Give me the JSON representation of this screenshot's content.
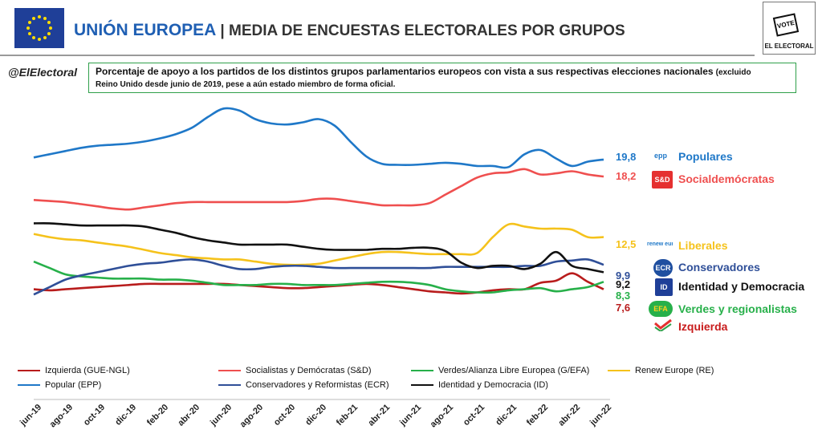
{
  "header": {
    "title_part1": "UNIÓN EUROPEA",
    "title_part2": "| MEDIA DE ENCUESTAS ELECTORALES POR GRUPOS",
    "logo_text": "VOTE",
    "logo_brand": "EL ELECTORAL",
    "handle": "@ElElectoral"
  },
  "subtitle": {
    "main": "Porcentaje de apoyo a los partidos de los distintos grupos parlamentarios europeos con vista a sus respectivas elecciones nacionales",
    "note_inline": "(excluido",
    "note": "Reino Unido desde junio de 2019, pese a aún estado miembro de forma oficial."
  },
  "colors": {
    "epp": "#1f78c8",
    "sd": "#ef4f4f",
    "renew": "#f5c21b",
    "ecr": "#2f4f98",
    "id": "#111111",
    "greens": "#27b04a",
    "left": "#b81c1c"
  },
  "party_labels": [
    {
      "key": "epp",
      "value": "19,8",
      "name": "Populares",
      "icon": "epp-logo-icon",
      "icon_text": "epp"
    },
    {
      "key": "sd",
      "value": "18,2",
      "name": "Socialdemócratas",
      "icon": "sd-logo-icon",
      "icon_text": "S&D"
    },
    {
      "key": "renew",
      "value": "12,5",
      "name": "Liberales",
      "icon": "renew-europe-logo-icon",
      "icon_text": "renew europe."
    },
    {
      "key": "ecr",
      "value": "9,9",
      "name": "Conservadores",
      "icon": "ecr-logo-icon",
      "icon_text": "ECR"
    },
    {
      "key": "id",
      "value": "9,2",
      "name": "Identidad y Democracia",
      "icon": "id-logo-icon",
      "icon_text": "ID"
    },
    {
      "key": "greens",
      "value": "8,3",
      "name": "Verdes y regionalistas",
      "icon": "greens-efa-logo-icon",
      "icon_text": "EFA"
    },
    {
      "key": "left",
      "value": "7,6",
      "name": "Izquierda",
      "icon": "left-logo-icon",
      "icon_text": ""
    }
  ],
  "chart_data": {
    "type": "line",
    "title": "",
    "xlabel": "",
    "ylabel": "",
    "grid": false,
    "legend_position": "bottom",
    "ylim": [
      5,
      25
    ],
    "x_ticks": [
      "jun-19",
      "ago-19",
      "oct-19",
      "dic-19",
      "feb-20",
      "abr-20",
      "jun-20",
      "ago-20",
      "oct-20",
      "dic-20",
      "feb-21",
      "abr-21",
      "jun-21",
      "ago-21",
      "oct-21",
      "dic-21",
      "feb-22",
      "abr-22",
      "jun-22"
    ],
    "x": [
      "jun-19",
      "jul-19",
      "ago-19",
      "sep-19",
      "oct-19",
      "nov-19",
      "dic-19",
      "ene-20",
      "feb-20",
      "mar-20",
      "abr-20",
      "may-20",
      "jun-20",
      "jul-20",
      "ago-20",
      "sep-20",
      "oct-20",
      "nov-20",
      "dic-20",
      "ene-21",
      "feb-21",
      "mar-21",
      "abr-21",
      "may-21",
      "jun-21",
      "jul-21",
      "ago-21",
      "sep-21",
      "oct-21",
      "nov-21",
      "dic-21",
      "ene-22",
      "feb-22",
      "mar-22",
      "abr-22",
      "may-22",
      "jun-22"
    ],
    "series": [
      {
        "key": "left",
        "name": "Izquierda (GUE-NGL)",
        "values": [
          7.6,
          7.5,
          7.6,
          7.7,
          7.8,
          7.9,
          8.0,
          8.1,
          8.1,
          8.1,
          8.1,
          8.1,
          8.1,
          8.0,
          7.9,
          7.8,
          7.7,
          7.7,
          7.8,
          7.9,
          8.0,
          8.1,
          8.0,
          7.8,
          7.6,
          7.4,
          7.3,
          7.2,
          7.3,
          7.5,
          7.6,
          7.6,
          8.2,
          8.4,
          9.1,
          8.3,
          7.6
        ]
      },
      {
        "key": "sd",
        "name": "Socialistas y Demócratas (S&D)",
        "values": [
          16.0,
          15.9,
          15.8,
          15.6,
          15.4,
          15.2,
          15.1,
          15.3,
          15.5,
          15.7,
          15.8,
          15.8,
          15.8,
          15.8,
          15.8,
          15.8,
          15.8,
          15.9,
          16.1,
          16.1,
          15.9,
          15.7,
          15.5,
          15.5,
          15.5,
          15.7,
          16.5,
          17.3,
          18.1,
          18.5,
          18.6,
          18.9,
          18.4,
          18.5,
          18.7,
          18.4,
          18.2
        ]
      },
      {
        "key": "greens",
        "name": "Verdes/Alianza Libre Europea (G/EFA)",
        "values": [
          10.2,
          9.6,
          9.0,
          8.8,
          8.7,
          8.6,
          8.6,
          8.6,
          8.5,
          8.5,
          8.4,
          8.2,
          8.0,
          8.0,
          8.0,
          8.1,
          8.1,
          8.0,
          8.0,
          8.0,
          8.1,
          8.2,
          8.3,
          8.3,
          8.2,
          8.0,
          7.6,
          7.4,
          7.3,
          7.3,
          7.5,
          7.6,
          7.7,
          7.4,
          7.6,
          7.8,
          8.3
        ]
      },
      {
        "key": "renew",
        "name": "Renew Europe (RE)",
        "values": [
          12.8,
          12.5,
          12.3,
          12.2,
          12.0,
          11.8,
          11.6,
          11.3,
          11.0,
          10.8,
          10.6,
          10.5,
          10.4,
          10.4,
          10.2,
          10.0,
          9.9,
          9.9,
          10.0,
          10.3,
          10.6,
          10.9,
          11.1,
          11.1,
          11.0,
          10.9,
          10.9,
          10.9,
          11.0,
          12.5,
          13.7,
          13.5,
          13.3,
          13.3,
          13.2,
          12.5,
          12.5
        ]
      },
      {
        "key": "epp",
        "name": "Popular (EPP)",
        "values": [
          20.0,
          20.3,
          20.6,
          20.9,
          21.1,
          21.2,
          21.3,
          21.5,
          21.8,
          22.2,
          22.8,
          23.8,
          24.6,
          24.4,
          23.6,
          23.2,
          23.1,
          23.3,
          23.6,
          23.0,
          21.5,
          20.1,
          19.4,
          19.3,
          19.3,
          19.4,
          19.5,
          19.4,
          19.2,
          19.2,
          19.1,
          20.3,
          20.7,
          19.9,
          19.2,
          19.6,
          19.8
        ]
      },
      {
        "key": "ecr",
        "name": "Conservadores y Reformistas (ECR)",
        "values": [
          7.1,
          7.8,
          8.5,
          8.9,
          9.2,
          9.5,
          9.8,
          10.0,
          10.1,
          10.3,
          10.4,
          10.2,
          9.8,
          9.5,
          9.5,
          9.7,
          9.8,
          9.8,
          9.7,
          9.6,
          9.6,
          9.6,
          9.6,
          9.6,
          9.6,
          9.6,
          9.7,
          9.7,
          9.7,
          9.7,
          9.7,
          9.8,
          9.8,
          10.2,
          10.3,
          10.4,
          9.9
        ]
      },
      {
        "key": "id",
        "name": "Identidad y Democracia (ID)",
        "values": [
          13.8,
          13.8,
          13.7,
          13.6,
          13.6,
          13.6,
          13.6,
          13.5,
          13.2,
          12.9,
          12.5,
          12.2,
          12.0,
          11.8,
          11.8,
          11.8,
          11.8,
          11.6,
          11.4,
          11.3,
          11.3,
          11.3,
          11.4,
          11.4,
          11.5,
          11.5,
          11.2,
          10.1,
          9.6,
          9.8,
          9.8,
          9.5,
          10.0,
          11.1,
          9.8,
          9.5,
          9.2
        ]
      }
    ],
    "legend_order": [
      "left",
      "sd",
      "greens",
      "renew",
      "epp",
      "ecr",
      "id"
    ]
  }
}
